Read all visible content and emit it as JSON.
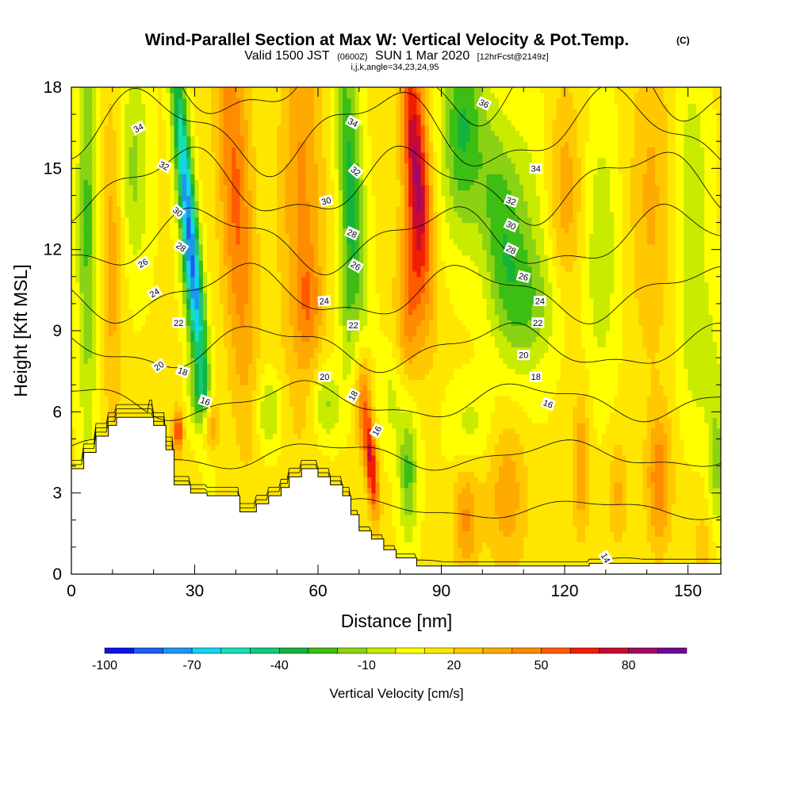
{
  "chart_data": {
    "type": "heatmap",
    "title": "Wind-Parallel Section at Max W: Vertical Velocity & Pot.Temp.",
    "title_mark": "(C)",
    "subtitle": {
      "valid": "Valid 1500 JST",
      "utc": "(0600Z)",
      "date": "SUN 1 Mar 2020",
      "forecast": "[12hrFcst@2149z]",
      "line3": "i,j,k,angle=34,23,24,95"
    },
    "xlabel": "Distance [nm]",
    "ylabel": "Height [Kft MSL]",
    "xlim": [
      0,
      158
    ],
    "ylim": [
      0,
      18
    ],
    "xticks": [
      "0",
      "30",
      "60",
      "90",
      "120",
      "150"
    ],
    "xtick_values": [
      0,
      30,
      60,
      90,
      120,
      150
    ],
    "yticks": [
      "0",
      "3",
      "6",
      "9",
      "12",
      "15",
      "18"
    ],
    "ytick_values": [
      0,
      3,
      6,
      9,
      12,
      15,
      18
    ],
    "colorbar": {
      "label": "Vertical Velocity [cm/s]",
      "ticks": [
        "-100",
        "-70",
        "-40",
        "-10",
        "20",
        "50",
        "80"
      ],
      "tick_values": [
        -100,
        -70,
        -40,
        -10,
        20,
        50,
        80
      ],
      "range": [
        -100,
        100
      ],
      "step": 10,
      "colors": [
        "#0a14e6",
        "#1e5ef0",
        "#1e96f0",
        "#14d2f5",
        "#14e0b4",
        "#14c878",
        "#14b43c",
        "#3cbe14",
        "#8cd214",
        "#c8eb00",
        "#ffff00",
        "#ffe600",
        "#ffc800",
        "#ffaa00",
        "#ff8c00",
        "#ff5a00",
        "#f01e00",
        "#c80a32",
        "#a00a64",
        "#6e0a96"
      ]
    },
    "terrain": [
      [
        0,
        3.9
      ],
      [
        3,
        3.9
      ],
      [
        3,
        4.5
      ],
      [
        6,
        4.5
      ],
      [
        6,
        5.1
      ],
      [
        9,
        5.1
      ],
      [
        9,
        5.5
      ],
      [
        11,
        5.5
      ],
      [
        11,
        5.8
      ],
      [
        20,
        5.8
      ],
      [
        20,
        5.5
      ],
      [
        23,
        5.5
      ],
      [
        23,
        4.6
      ],
      [
        25,
        4.6
      ],
      [
        25,
        3.3
      ],
      [
        29,
        3.3
      ],
      [
        29,
        3.0
      ],
      [
        33,
        3.0
      ],
      [
        33,
        2.9
      ],
      [
        41,
        2.9
      ],
      [
        41,
        2.3
      ],
      [
        45,
        2.3
      ],
      [
        45,
        2.6
      ],
      [
        48,
        2.6
      ],
      [
        48,
        2.9
      ],
      [
        51,
        2.9
      ],
      [
        51,
        3.2
      ],
      [
        53,
        3.2
      ],
      [
        53,
        3.6
      ],
      [
        56,
        3.6
      ],
      [
        56,
        3.9
      ],
      [
        60,
        3.9
      ],
      [
        60,
        3.6
      ],
      [
        63,
        3.6
      ],
      [
        63,
        3.3
      ],
      [
        66,
        3.3
      ],
      [
        66,
        2.9
      ],
      [
        68,
        2.9
      ],
      [
        68,
        2.2
      ],
      [
        70,
        2.2
      ],
      [
        70,
        1.6
      ],
      [
        73,
        1.6
      ],
      [
        73,
        1.3
      ],
      [
        76,
        1.3
      ],
      [
        76,
        0.9
      ],
      [
        79,
        0.9
      ],
      [
        79,
        0.6
      ],
      [
        84,
        0.6
      ],
      [
        84,
        0.3
      ],
      [
        126,
        0.3
      ],
      [
        126,
        0.4
      ],
      [
        158,
        0.4
      ]
    ],
    "w_features": [
      {
        "x": 1,
        "y": 14,
        "w": 0,
        "sx": 2.5,
        "sy": 10
      },
      {
        "x": 4,
        "y": 13,
        "w": -35,
        "sx": 2.5,
        "sy": 8
      },
      {
        "x": 10,
        "y": 12,
        "w": 25,
        "sx": 3,
        "sy": 6
      },
      {
        "x": 15,
        "y": 15,
        "w": -25,
        "sx": 4,
        "sy": 4
      },
      {
        "x": 28,
        "y": 14,
        "w": -78,
        "sx": 2,
        "sy": 6,
        "slope": -0.55
      },
      {
        "x": 30,
        "y": 10,
        "w": -35,
        "sx": 2.5,
        "sy": 3.5,
        "slope": -0.55
      },
      {
        "x": 40,
        "y": 14,
        "w": 40,
        "sx": 4,
        "sy": 8,
        "slope": -0.3
      },
      {
        "x": 34,
        "y": 5.5,
        "w": 35,
        "sx": 2,
        "sy": 1
      },
      {
        "x": 26,
        "y": 5.3,
        "w": 50,
        "sx": 1.2,
        "sy": 0.8
      },
      {
        "x": 31,
        "y": 6.5,
        "w": -25,
        "sx": 2.5,
        "sy": 1.2
      },
      {
        "x": 56,
        "y": 14,
        "w": 30,
        "sx": 5,
        "sy": 8
      },
      {
        "x": 62,
        "y": 6.3,
        "w": -25,
        "sx": 3.5,
        "sy": 1.4
      },
      {
        "x": 48,
        "y": 6,
        "w": -25,
        "sx": 3,
        "sy": 1.5
      },
      {
        "x": 58,
        "y": 10,
        "w": 20,
        "sx": 3,
        "sy": 2
      },
      {
        "x": 68,
        "y": 14.5,
        "w": -45,
        "sx": 3,
        "sy": 6,
        "slope": -0.4
      },
      {
        "x": 67,
        "y": 10,
        "w": -20,
        "sx": 2,
        "sy": 3
      },
      {
        "x": 73,
        "y": 4,
        "w": 60,
        "sx": 1.5,
        "sy": 2,
        "slope": -0.5
      },
      {
        "x": 71,
        "y": 6.5,
        "w": 35,
        "sx": 2,
        "sy": 2
      },
      {
        "x": 84,
        "y": 15,
        "w": 70,
        "sx": 3,
        "sy": 5,
        "slope": -0.4
      },
      {
        "x": 82,
        "y": 10,
        "w": 35,
        "sx": 3,
        "sy": 3
      },
      {
        "x": 82,
        "y": 3.8,
        "w": -35,
        "sx": 2.3,
        "sy": 2.5
      },
      {
        "x": 78,
        "y": 6.5,
        "w": -15,
        "sx": 3,
        "sy": 2
      },
      {
        "x": 95,
        "y": 16.5,
        "w": -42,
        "sx": 5,
        "sy": 4
      },
      {
        "x": 104,
        "y": 13,
        "w": -30,
        "sx": 5,
        "sy": 4,
        "slope": -0.5
      },
      {
        "x": 110,
        "y": 12,
        "w": -20,
        "sx": 7,
        "sy": 5
      },
      {
        "x": 96,
        "y": 2,
        "w": 30,
        "sx": 3,
        "sy": 2
      },
      {
        "x": 106,
        "y": 3,
        "w": 25,
        "sx": 5,
        "sy": 3
      },
      {
        "x": 97,
        "y": 5.5,
        "w": -15,
        "sx": 6,
        "sy": 1.5
      },
      {
        "x": 113,
        "y": 10,
        "w": -15,
        "sx": 8,
        "sy": 2
      },
      {
        "x": 120,
        "y": 14,
        "w": 25,
        "sx": 4,
        "sy": 4
      },
      {
        "x": 124,
        "y": 4,
        "w": 30,
        "sx": 2,
        "sy": 2.5
      },
      {
        "x": 129,
        "y": 12,
        "w": -20,
        "sx": 4,
        "sy": 5
      },
      {
        "x": 143,
        "y": 3.5,
        "w": 35,
        "sx": 3,
        "sy": 2.5
      },
      {
        "x": 141,
        "y": 14,
        "w": 20,
        "sx": 5,
        "sy": 6
      },
      {
        "x": 133,
        "y": 3,
        "w": 20,
        "sx": 2.5,
        "sy": 2
      },
      {
        "x": 151,
        "y": 14,
        "w": -20,
        "sx": 4,
        "sy": 5
      },
      {
        "x": 153,
        "y": 8,
        "w": -15,
        "sx": 5,
        "sy": 3
      },
      {
        "x": 157,
        "y": 4,
        "w": -25,
        "sx": 2,
        "sy": 3
      },
      {
        "x": 154,
        "y": 1,
        "w": 15,
        "sx": 3,
        "sy": 1.5
      }
    ],
    "theta_levels": [
      14,
      16,
      18,
      20,
      22,
      24,
      26,
      28,
      30,
      32,
      34,
      36
    ],
    "theta_labels": [
      {
        "text": "34",
        "x": 16.3,
        "y": 16.5,
        "angle": -28
      },
      {
        "text": "32",
        "x": 22.6,
        "y": 15.1,
        "angle": 28
      },
      {
        "text": "30",
        "x": 25.9,
        "y": 13.4,
        "angle": 40
      },
      {
        "text": "28",
        "x": 26.7,
        "y": 12.1,
        "angle": 35
      },
      {
        "text": "26",
        "x": 17.4,
        "y": 11.5,
        "angle": -30
      },
      {
        "text": "24",
        "x": 20.2,
        "y": 10.4,
        "angle": -30
      },
      {
        "text": "22",
        "x": 26.1,
        "y": 9.3,
        "angle": 0
      },
      {
        "text": "20",
        "x": 21.3,
        "y": 7.7,
        "angle": -35
      },
      {
        "text": "18",
        "x": 27.1,
        "y": 7.5,
        "angle": 20
      },
      {
        "text": "16",
        "x": 32.6,
        "y": 6.4,
        "angle": 20
      },
      {
        "text": "34",
        "x": 68.5,
        "y": 16.7,
        "angle": 28
      },
      {
        "text": "32",
        "x": 69.2,
        "y": 14.9,
        "angle": 40
      },
      {
        "text": "30",
        "x": 62.0,
        "y": 13.8,
        "angle": -15
      },
      {
        "text": "28",
        "x": 68.3,
        "y": 12.6,
        "angle": 25
      },
      {
        "text": "26",
        "x": 69.2,
        "y": 11.4,
        "angle": 30
      },
      {
        "text": "24",
        "x": 61.5,
        "y": 10.1,
        "angle": -5
      },
      {
        "text": "22",
        "x": 68.6,
        "y": 9.2,
        "angle": 0
      },
      {
        "text": "20",
        "x": 61.6,
        "y": 7.3,
        "angle": 0
      },
      {
        "text": "18",
        "x": 68.5,
        "y": 6.6,
        "angle": -60
      },
      {
        "text": "16",
        "x": 74.3,
        "y": 5.3,
        "angle": -60
      },
      {
        "text": "36",
        "x": 100.4,
        "y": 17.4,
        "angle": 25
      },
      {
        "text": "34",
        "x": 113.0,
        "y": 15.0,
        "angle": 0
      },
      {
        "text": "32",
        "x": 107.0,
        "y": 13.8,
        "angle": 20
      },
      {
        "text": "30",
        "x": 107.0,
        "y": 12.9,
        "angle": 25
      },
      {
        "text": "28",
        "x": 107.0,
        "y": 12.0,
        "angle": 25
      },
      {
        "text": "26",
        "x": 110.0,
        "y": 11.0,
        "angle": 15
      },
      {
        "text": "24",
        "x": 114.0,
        "y": 10.1,
        "angle": 0
      },
      {
        "text": "22",
        "x": 113.5,
        "y": 9.3,
        "angle": 0
      },
      {
        "text": "20",
        "x": 110.0,
        "y": 8.1,
        "angle": 0
      },
      {
        "text": "18",
        "x": 113.0,
        "y": 7.3,
        "angle": 0
      },
      {
        "text": "16",
        "x": 116.0,
        "y": 6.3,
        "angle": 20
      },
      {
        "text": "14",
        "x": 130.0,
        "y": 0.6,
        "angle": 60
      }
    ],
    "grid": false,
    "legend": "colorbar-bottom"
  }
}
